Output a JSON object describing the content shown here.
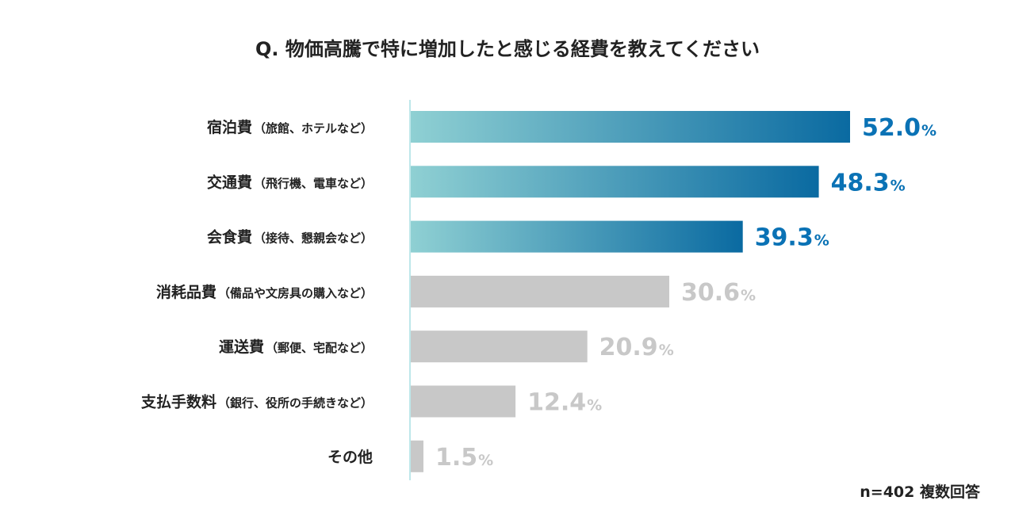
{
  "chart_data": {
    "type": "bar",
    "orientation": "horizontal",
    "title": "Q. 物価高騰で特に増加したと感じる経費を教えてください",
    "categories": [
      {
        "main": "宿泊費",
        "paren": "（旅館、ホテルなど）"
      },
      {
        "main": "交通費",
        "paren": "（飛行機、電車など）"
      },
      {
        "main": "会食費",
        "paren": "（接待、懇親会など）"
      },
      {
        "main": "消耗品費",
        "paren": "（備品や文房具の購入など）"
      },
      {
        "main": "運送費",
        "paren": "（郵便、宅配など）"
      },
      {
        "main": "支払手数料",
        "paren": "（銀行、役所の手続きなど）"
      },
      {
        "main": "その他",
        "paren": ""
      }
    ],
    "values": [
      52.0,
      48.3,
      39.3,
      30.6,
      20.9,
      12.4,
      1.5
    ],
    "value_labels": [
      "52.0",
      "48.3",
      "39.3",
      "30.6",
      "20.9",
      "12.4",
      "1.5"
    ],
    "unit": "%",
    "highlighted_count": 3,
    "xlim": [
      0,
      60
    ],
    "grid": false,
    "note": "n=402 複数回答",
    "colors": {
      "highlight_start": "#8fd0d3",
      "highlight_end": "#0a6aa1",
      "highlight_label": "#0a72b5",
      "muted_bar": "#c8c8c8",
      "muted_label": "#c8c8c8",
      "axis": "#a9dfe3",
      "text": "#222222"
    }
  }
}
